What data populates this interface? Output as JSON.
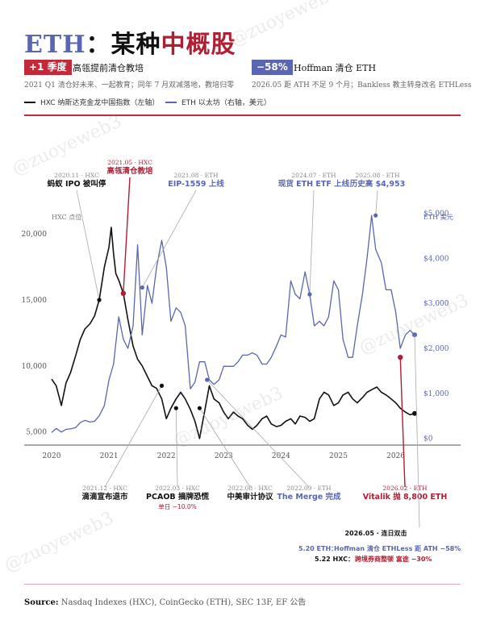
{
  "header": {
    "title_eth": "ETH",
    "title_colon": "：",
    "title_main": "某种",
    "title_red": "中概股",
    "badge_left": "+1 季度",
    "badge_left_label": "高瓴提前清仓教培",
    "badge_left_sub": "2021 Q1 清仓好未来、一起教育；同年 7 月双减落地，教培归零",
    "badge_right": "−58%",
    "badge_right_label": "Hoffman 清仓 ETH",
    "badge_right_sub": "2026.05 距 ATH 不足 9 个月；Bankless 教主转身改名 ETHLess"
  },
  "legend": {
    "hxc": "HXC 纳斯达克金龙中国指数（左轴）",
    "eth": "ETH 以太坊（右轴，美元）"
  },
  "watermark": "@zuoyeweb3",
  "source": {
    "label": "Source:",
    "text": "Nasdaq Indexes (HXC), CoinGecko (ETH), SEC 13F, EF 公告"
  },
  "colors": {
    "hxc": "#111111",
    "eth": "#5a66b0",
    "accent": "#b01e34"
  },
  "chart_data": {
    "type": "line",
    "x_ticks": [
      "2020",
      "2021",
      "2022",
      "2023",
      "2024",
      "2025",
      "2026"
    ],
    "xlim": [
      2020.0,
      2026.4
    ],
    "left_axis": {
      "label": "HXC 点位",
      "ticks": [
        "5,000",
        "10,000",
        "15,000",
        "20,000"
      ],
      "tick_values": [
        5000,
        10000,
        15000,
        20000
      ],
      "ylim": [
        4000,
        26000
      ]
    },
    "right_axis": {
      "label": "ETH 美元",
      "ticks": [
        "$0",
        "$1,000",
        "$2,000",
        "$3,000",
        "$4,000",
        "$5,000"
      ],
      "tick_values": [
        0,
        1000,
        2000,
        3000,
        4000,
        5000
      ],
      "ylim": [
        -150,
        6300
      ]
    },
    "series": [
      {
        "name": "HXC 纳斯达克金龙中国指数（左轴）",
        "axis": "left",
        "x": [
          2020.0,
          2020.08,
          2020.17,
          2020.25,
          2020.33,
          2020.42,
          2020.5,
          2020.58,
          2020.67,
          2020.75,
          2020.83,
          2020.92,
          2021.0,
          2021.04,
          2021.08,
          2021.12,
          2021.17,
          2021.25,
          2021.33,
          2021.42,
          2021.5,
          2021.58,
          2021.67,
          2021.75,
          2021.83,
          2021.92,
          2022.0,
          2022.08,
          2022.17,
          2022.25,
          2022.33,
          2022.42,
          2022.5,
          2022.58,
          2022.67,
          2022.75,
          2022.83,
          2022.92,
          2023.0,
          2023.08,
          2023.17,
          2023.25,
          2023.33,
          2023.42,
          2023.5,
          2023.58,
          2023.67,
          2023.75,
          2023.83,
          2023.92,
          2024.0,
          2024.08,
          2024.17,
          2024.25,
          2024.33,
          2024.42,
          2024.5,
          2024.58,
          2024.67,
          2024.75,
          2024.83,
          2024.92,
          2025.0,
          2025.08,
          2025.17,
          2025.25,
          2025.33,
          2025.42,
          2025.5,
          2025.58,
          2025.67,
          2025.75,
          2025.83,
          2025.92,
          2026.0,
          2026.08,
          2026.17,
          2026.25,
          2026.33
        ],
        "values": [
          9000,
          8500,
          7000,
          8700,
          9500,
          10800,
          12000,
          12800,
          13200,
          13800,
          15000,
          17500,
          19000,
          20500,
          18500,
          17000,
          16500,
          15500,
          13500,
          11500,
          10500,
          10000,
          9200,
          8500,
          8300,
          7500,
          6000,
          6800,
          7500,
          8000,
          7500,
          6700,
          5800,
          4500,
          6600,
          8500,
          7500,
          7200,
          6500,
          6000,
          6500,
          6200,
          6000,
          5500,
          5200,
          5500,
          6000,
          6200,
          5600,
          5400,
          5500,
          5800,
          6000,
          5600,
          6200,
          6100,
          5800,
          6000,
          7500,
          8000,
          7800,
          7000,
          7200,
          7800,
          8000,
          7500,
          7200,
          7600,
          8000,
          8200,
          8400,
          8000,
          7800,
          7500,
          7200,
          6800,
          6500,
          6300,
          6400
        ]
      },
      {
        "name": "ETH 以太坊（右轴，美元）",
        "axis": "right",
        "x": [
          2020.0,
          2020.08,
          2020.17,
          2020.25,
          2020.33,
          2020.42,
          2020.5,
          2020.58,
          2020.67,
          2020.75,
          2020.83,
          2020.92,
          2021.0,
          2021.08,
          2021.17,
          2021.25,
          2021.33,
          2021.42,
          2021.5,
          2021.58,
          2021.67,
          2021.75,
          2021.83,
          2021.92,
          2022.0,
          2022.08,
          2022.17,
          2022.25,
          2022.33,
          2022.42,
          2022.5,
          2022.58,
          2022.67,
          2022.75,
          2022.83,
          2022.92,
          2023.0,
          2023.08,
          2023.17,
          2023.25,
          2023.33,
          2023.42,
          2023.5,
          2023.58,
          2023.67,
          2023.75,
          2023.83,
          2023.92,
          2024.0,
          2024.08,
          2024.17,
          2024.25,
          2024.33,
          2024.42,
          2024.5,
          2024.58,
          2024.67,
          2024.75,
          2024.83,
          2024.92,
          2025.0,
          2025.08,
          2025.17,
          2025.25,
          2025.33,
          2025.42,
          2025.5,
          2025.58,
          2025.65,
          2025.75,
          2025.83,
          2025.92,
          2026.0,
          2026.08,
          2026.17,
          2026.25,
          2026.33
        ],
        "values": [
          130,
          220,
          140,
          200,
          210,
          240,
          350,
          400,
          360,
          380,
          500,
          730,
          1300,
          1650,
          2700,
          2200,
          2000,
          2500,
          4300,
          2300,
          3400,
          3000,
          3800,
          4400,
          3800,
          2600,
          2900,
          2800,
          2500,
          1100,
          1250,
          1700,
          1700,
          1300,
          1200,
          1300,
          1600,
          1600,
          1600,
          1700,
          1850,
          1850,
          1900,
          1850,
          1650,
          1650,
          1800,
          2050,
          2300,
          2250,
          3500,
          3200,
          3100,
          3700,
          3200,
          2500,
          2600,
          2500,
          2700,
          3500,
          3300,
          2200,
          1800,
          1800,
          2500,
          3200,
          4000,
          4953,
          4200,
          3900,
          3300,
          3300,
          2800,
          2000,
          2300,
          2400,
          2300
        ]
      }
    ],
    "annotations": [
      {
        "date": "2020.11 · HXC",
        "text": "蚂蚁 IPO 被叫停",
        "x": 2020.83,
        "y": 15000,
        "axis": "left",
        "accent": false,
        "color": "hxc"
      },
      {
        "date": "2021.05 · HXC",
        "text": "高瓴清仓教培",
        "x": 2021.25,
        "y": 15500,
        "axis": "left",
        "accent": true,
        "color": "accent"
      },
      {
        "date": "2021.08 · ETH",
        "text": "EIP-1559 上线",
        "x": 2021.58,
        "y": 3350,
        "axis": "right",
        "accent": false,
        "color": "eth"
      },
      {
        "date": "2024.07 · ETH",
        "text": "现货 ETH ETF 上线",
        "x": 2024.5,
        "y": 3200,
        "axis": "right",
        "accent": false,
        "color": "eth"
      },
      {
        "date": "2025.08 · ETH",
        "text": "历史高 $4,953",
        "x": 2025.65,
        "y": 4953,
        "axis": "right",
        "accent": false,
        "color": "eth"
      },
      {
        "date": "2021.12 · HXC",
        "text": "滴滴宣布退市",
        "x": 2021.92,
        "y": 8500,
        "axis": "left",
        "accent": false,
        "color": "hxc"
      },
      {
        "date": "2022.03 · HXC",
        "text": "PCAOB 摘牌恐慌",
        "note": "单日 −10.0%",
        "x": 2022.17,
        "y": 6800,
        "axis": "left",
        "accent": false,
        "color": "hxc"
      },
      {
        "date": "2022.08 · HXC",
        "text": "中美审计协议",
        "x": 2022.58,
        "y": 6800,
        "axis": "left",
        "accent": false,
        "color": "hxc"
      },
      {
        "date": "2022.09 · ETH",
        "text": "The Merge 完成",
        "x": 2022.71,
        "y": 1300,
        "axis": "right",
        "accent": false,
        "color": "eth"
      },
      {
        "date": "2026.02 · ETH",
        "text": "Vitalik 抛 8,800 ETH",
        "x": 2026.08,
        "y": 1800,
        "axis": "right",
        "accent": true,
        "color": "accent"
      }
    ],
    "event_box": {
      "title": "2026.05 · 连日双击",
      "line1_prefix": "5.20 ETH：",
      "line1_text": "Hoffman 清仓 ETHLess 距 ATH −58%",
      "line2_prefix": "5.22 HXC：",
      "line2_text": "跨境券商整顿 富途 −30%"
    },
    "end_points": [
      {
        "x": 2026.33,
        "y": 6400,
        "axis": "left",
        "color": "hxc"
      },
      {
        "x": 2026.33,
        "y": 2300,
        "axis": "right",
        "color": "eth"
      }
    ],
    "legend_position": "top-left",
    "grid": false
  }
}
